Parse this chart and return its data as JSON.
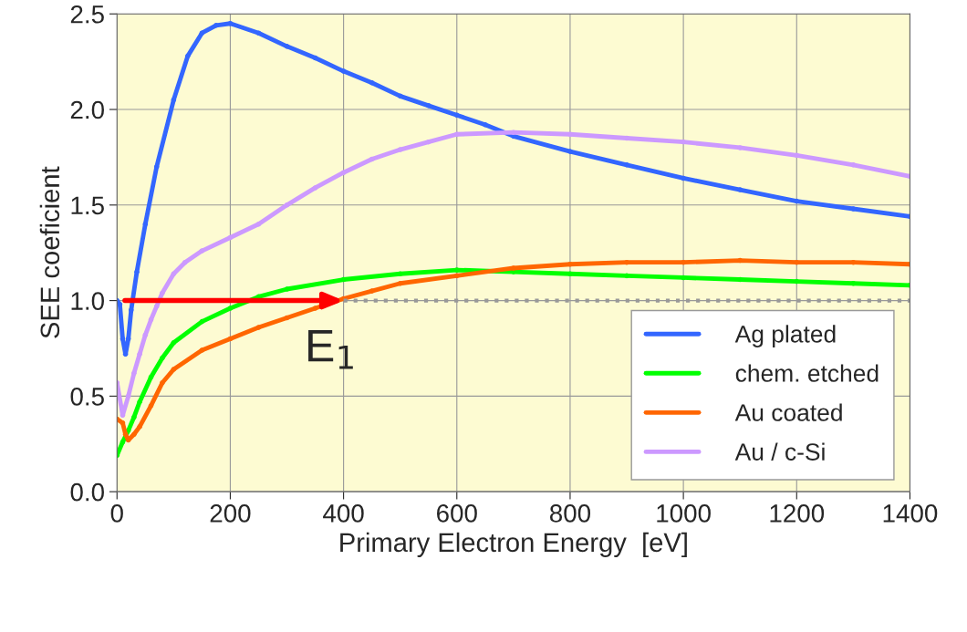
{
  "chart_data": {
    "type": "line",
    "xlabel": "Primary Electron Energy  [eV]",
    "ylabel": "SEE coeficient",
    "xlim": [
      0,
      1400
    ],
    "xticks": [
      0,
      200,
      400,
      600,
      800,
      1000,
      1200,
      1400
    ],
    "ylim": [
      0,
      2.5
    ],
    "yticks": [
      {
        "value": 0,
        "label": "0.0"
      },
      0.5,
      {
        "value": 1,
        "label": "1.0"
      },
      1.5,
      {
        "value": 2,
        "label": "2.0"
      },
      2.5
    ],
    "grid": true,
    "legend": "bottom right",
    "marker": "circle",
    "line_style": "solid",
    "series": [
      {
        "name": "Ag plated",
        "color": "#3366ff",
        "x": [
          0,
          5,
          10,
          15,
          20,
          25,
          35,
          50,
          70,
          100,
          125,
          150,
          175,
          200,
          250,
          300,
          350,
          400,
          450,
          500,
          550,
          600,
          650,
          700,
          800,
          900,
          1000,
          1100,
          1200,
          1300,
          1400
        ],
        "values": [
          1.0,
          0.98,
          0.8,
          0.72,
          0.8,
          0.95,
          1.15,
          1.4,
          1.7,
          2.05,
          2.28,
          2.4,
          2.44,
          2.45,
          2.4,
          2.33,
          2.27,
          2.2,
          2.14,
          2.07,
          2.02,
          1.97,
          1.92,
          1.86,
          1.78,
          1.71,
          1.64,
          1.58,
          1.52,
          1.48,
          1.44
        ]
      },
      {
        "name": "chem. etched",
        "color": "#00ff00",
        "x": [
          0,
          10,
          20,
          30,
          40,
          60,
          80,
          100,
          150,
          200,
          250,
          300,
          400,
          500,
          600,
          700,
          800,
          900,
          1000,
          1100,
          1200,
          1300,
          1400
        ],
        "values": [
          0.19,
          0.26,
          0.32,
          0.39,
          0.47,
          0.6,
          0.7,
          0.78,
          0.89,
          0.96,
          1.02,
          1.06,
          1.11,
          1.14,
          1.16,
          1.15,
          1.14,
          1.13,
          1.12,
          1.11,
          1.1,
          1.09,
          1.08
        ]
      },
      {
        "name": "Au coated",
        "color": "#ff6600",
        "x": [
          0,
          10,
          15,
          20,
          30,
          40,
          60,
          80,
          100,
          150,
          200,
          250,
          300,
          350,
          400,
          450,
          500,
          600,
          700,
          800,
          900,
          1000,
          1100,
          1200,
          1300,
          1400
        ],
        "values": [
          0.38,
          0.36,
          0.3,
          0.27,
          0.3,
          0.34,
          0.45,
          0.57,
          0.64,
          0.74,
          0.8,
          0.86,
          0.91,
          0.96,
          1.01,
          1.05,
          1.09,
          1.13,
          1.17,
          1.19,
          1.2,
          1.2,
          1.21,
          1.2,
          1.2,
          1.19
        ]
      },
      {
        "name": "Au / c-Si",
        "color": "#cc99ff",
        "x": [
          0,
          10,
          20,
          30,
          40,
          50,
          60,
          70,
          80,
          100,
          120,
          150,
          200,
          250,
          300,
          350,
          400,
          450,
          500,
          550,
          600,
          700,
          800,
          900,
          1000,
          1100,
          1200,
          1300,
          1400
        ],
        "values": [
          0.57,
          0.4,
          0.5,
          0.62,
          0.72,
          0.82,
          0.9,
          0.97,
          1.04,
          1.14,
          1.2,
          1.26,
          1.33,
          1.4,
          1.5,
          1.59,
          1.67,
          1.74,
          1.79,
          1.83,
          1.87,
          1.88,
          1.87,
          1.85,
          1.83,
          1.8,
          1.76,
          1.71,
          1.65
        ]
      },
      {
        "type": "line",
        "color": "#999999",
        "line_style": "dotted",
        "marker": "none",
        "x": [
          400,
          1400
        ],
        "values": [
          1.0,
          1.0
        ]
      }
    ],
    "annotations": [
      {
        "text": "E$_{1}$",
        "x": 400,
        "y": 1.0
      }
    ]
  }
}
